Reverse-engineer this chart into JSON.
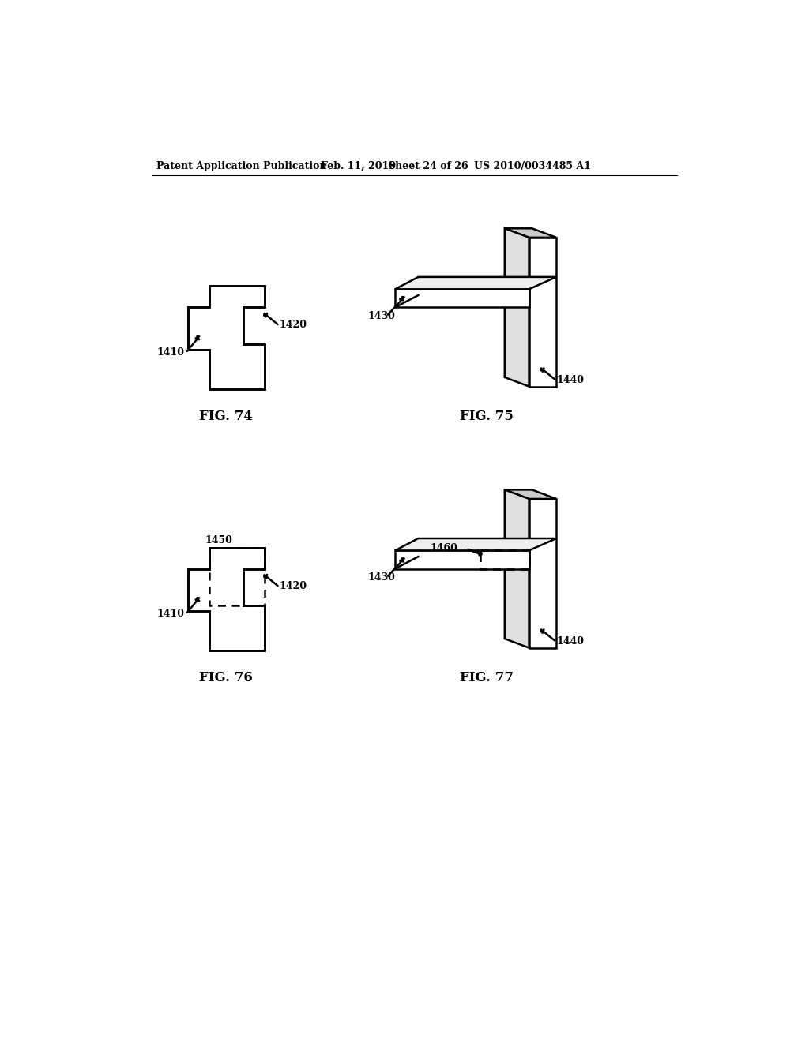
{
  "background_color": "#ffffff",
  "header_text": "Patent Application Publication",
  "header_date": "Feb. 11, 2010",
  "header_sheet": "Sheet 24 of 26",
  "header_patent": "US 2010/0034485 A1",
  "fig74_label": "FIG. 74",
  "fig75_label": "FIG. 75",
  "fig76_label": "FIG. 76",
  "fig77_label": "FIG. 77",
  "label_1410": "1410",
  "label_1420": "1420",
  "label_1430": "1430",
  "label_1440": "1440",
  "label_1450": "1450",
  "label_1460": "1460",
  "line_color": "#000000",
  "line_width": 1.8,
  "label_fontsize": 9,
  "fig_label_fontsize": 12
}
